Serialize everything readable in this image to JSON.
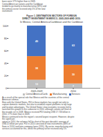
{
  "chart_data": {
    "type": "bar",
    "stacked": true,
    "title": "In Mexico, Central America/Caribbean and the Caribbean",
    "text_above": [
      "basis were 17% higher than in 2009.",
      "Central American nations and the Caribbean",
      "tended to go mainly to manufacturing (58%) and",
      "the primary sector received only 5% of the total",
      "investment."
    ],
    "figure_title": [
      "Figure 1. DESTINATION SECTORS OF FOREIGN",
      "DIRECT INVESTMENT IN MEXICO, 2005-2009 AND 2010."
    ],
    "categories": [
      "2005-2009",
      "2010"
    ],
    "series": [
      {
        "name": "Central America/Carib.",
        "color": "#C0C0C0",
        "values": [
          13,
          7
        ]
      },
      {
        "name": "Manufacturing",
        "color": "#ED7D31",
        "values": [
          38,
          30
        ]
      },
      {
        "name": "Services",
        "color": "#4472C4",
        "values": [
          49,
          63
        ]
      }
    ],
    "ylim": [
      0,
      100
    ],
    "yticks": [
      0,
      20,
      40,
      60,
      80,
      100
    ],
    "grid": false,
    "data_labels": true,
    "legend": "bottom",
    "text_below": [
      "As a result of the special role that Mexico and the countries of the central",
      "American isthmus",
      "Here with the United States, FDI in these markets has sought not only to",
      "capture domestic markets, but also to establish export platforms to tap large",
      "and location advantages. The United States' slow economic recovery led to",
      "launched this growth in this subsector in 2010, although column-tall short of",
      "the records set in 2008. Mexico received FDI totaling US$ 17.726 billion in",
      "2010, 17% more than in 2009.",
      "Mexico continued to be the region's second largest recipient. However, despite",
      "the significant",
      "upturn in 2010, the volumes fell far short of the past decade's average of",
      "US$ 21 billion per year. FDI in 2010 consisted of new investments (68% of",
      "flows in 2010) and inter-company loans (20%). By sector, manufacturing and",
      "services accounted for this, whilst the primary sector received only 5%"
    ]
  }
}
